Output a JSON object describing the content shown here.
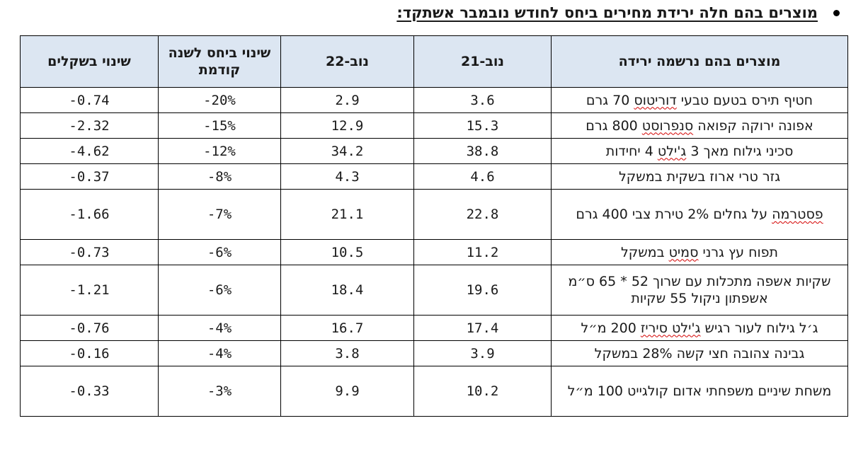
{
  "heading": "מוצרים בהם חלה ירידת מחירים ביחס לחודש נובמבר אשתקד:",
  "table": {
    "headers": {
      "product": "מוצרים בהם נרשמה ירידה",
      "nov21": "נוב-21",
      "nov22": "נוב-22",
      "pct": "שינוי ביחס לשנה קודמת",
      "shekel": "שינוי בשקלים"
    },
    "rows": [
      {
        "product": [
          "חטיף תירס בטעם טבעי ",
          "דוריטוס",
          " 70 גרם"
        ],
        "nov21": "3.6",
        "nov22": "2.9",
        "pct": "-20%",
        "shekel": "-0.74"
      },
      {
        "product": [
          "אפונה ירוקה קפואה ",
          "סנפרוסט",
          " 800 גרם"
        ],
        "nov21": "15.3",
        "nov22": "12.9",
        "pct": "-15%",
        "shekel": "-2.32"
      },
      {
        "product": [
          "סכיני גילוח מאך 3 ",
          "ג'ילט",
          " 4 יחידות"
        ],
        "nov21": "38.8",
        "nov22": "34.2",
        "pct": "-12%",
        "shekel": "-4.62"
      },
      {
        "product": [
          "גזר טרי ארוז בשקית במשקל",
          "",
          ""
        ],
        "nov21": "4.6",
        "nov22": "4.3",
        "pct": "-8%",
        "shekel": "-0.37"
      },
      {
        "product": [
          "",
          "פסטרמה",
          " על גחלים 2% טירת צבי 400 גרם"
        ],
        "nov21": "22.8",
        "nov22": "21.1",
        "pct": "-7%",
        "shekel": "-1.66"
      },
      {
        "product": [
          "תפוח עץ גרני ",
          "סמיט",
          " במשקל"
        ],
        "nov21": "11.2",
        "nov22": "10.5",
        "pct": "-6%",
        "shekel": "-0.73"
      },
      {
        "product": [
          "שקיות אשפה מתכלות עם שרוך 52 * 65 ס״מ אשפתון ניקול 55 שקיות",
          "",
          ""
        ],
        "nov21": "19.6",
        "nov22": "18.4",
        "pct": "-6%",
        "shekel": "-1.21"
      },
      {
        "product": [
          "ג׳ל גילוח לעור רגיש ",
          "ג'ילט סיריז",
          " 200 מ״ל"
        ],
        "nov21": "17.4",
        "nov22": "16.7",
        "pct": "-4%",
        "shekel": "-0.76"
      },
      {
        "product": [
          "גבינה צהובה חצי קשה 28% במשקל",
          "",
          ""
        ],
        "nov21": "3.9",
        "nov22": "3.8",
        "pct": "-4%",
        "shekel": "-0.16"
      },
      {
        "product": [
          "משחת שיניים משפחתי אדום קולגייט 100 מ״ל",
          "",
          ""
        ],
        "nov21": "10.2",
        "nov22": "9.9",
        "pct": "-3%",
        "shekel": "-0.33"
      }
    ]
  }
}
